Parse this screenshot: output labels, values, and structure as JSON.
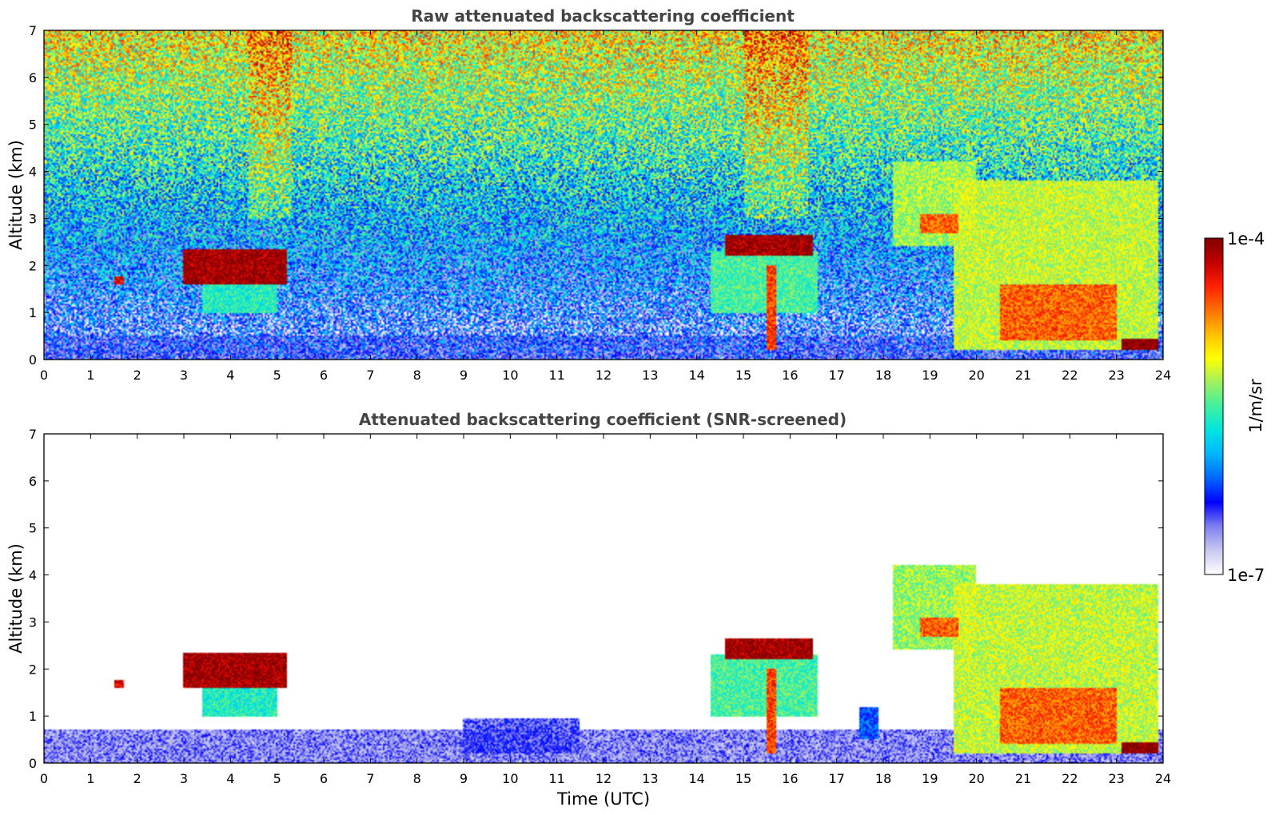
{
  "figure": {
    "colormap": [
      "#ffffff",
      "#c8c8f0",
      "#8080f0",
      "#0000ff",
      "#0066ff",
      "#00b4ff",
      "#00e6e0",
      "#40f0a0",
      "#a0f060",
      "#ffff00",
      "#ffc000",
      "#ff7000",
      "#ff2000",
      "#c00000",
      "#800000"
    ],
    "colorbar": {
      "label": "1/m/sr",
      "tick_top": "1e-4",
      "tick_bottom": "1e-7",
      "min": 1e-07,
      "max": 0.0001,
      "scale": "log"
    }
  },
  "chart_data": [
    {
      "type": "heatmap",
      "title": "Raw attenuated backscattering coefficient",
      "xlabel": "",
      "ylabel": "Altitude (km)",
      "xlim": [
        0,
        24
      ],
      "ylim": [
        0,
        7
      ],
      "x_ticks": [
        "0",
        "1",
        "2",
        "3",
        "4",
        "5",
        "6",
        "7",
        "8",
        "9",
        "10",
        "11",
        "12",
        "13",
        "14",
        "15",
        "16",
        "17",
        "18",
        "19",
        "20",
        "21",
        "22",
        "23",
        "24"
      ],
      "y_ticks": [
        "0",
        "1",
        "2",
        "3",
        "4",
        "5",
        "6",
        "7"
      ],
      "noise_screened": false,
      "features": [
        {
          "t0": 0,
          "t1": 24,
          "z0": 0,
          "z1": 0.5,
          "log_beta": -6.6
        },
        {
          "t0": 3.0,
          "t1": 5.2,
          "z0": 1.6,
          "z1": 2.35,
          "log_beta": -4.1
        },
        {
          "t0": 3.4,
          "t1": 5.0,
          "z0": 1.0,
          "z1": 1.8,
          "log_beta": -5.6
        },
        {
          "t0": 1.5,
          "t1": 1.7,
          "z0": 1.6,
          "z1": 1.75,
          "log_beta": -4.3
        },
        {
          "t0": 14.6,
          "t1": 16.5,
          "z0": 2.2,
          "z1": 2.65,
          "log_beta": -4.1
        },
        {
          "t0": 14.3,
          "t1": 16.6,
          "z0": 1.0,
          "z1": 2.3,
          "log_beta": -5.5
        },
        {
          "t0": 15.5,
          "t1": 15.7,
          "z0": 0.2,
          "z1": 2.0,
          "log_beta": -4.5
        },
        {
          "t0": 18.2,
          "t1": 20.0,
          "z0": 2.4,
          "z1": 4.2,
          "log_beta": -5.3
        },
        {
          "t0": 18.8,
          "t1": 19.6,
          "z0": 2.7,
          "z1": 3.1,
          "log_beta": -4.6
        },
        {
          "t0": 19.5,
          "t1": 23.9,
          "z0": 0.2,
          "z1": 3.8,
          "log_beta": -5.2
        },
        {
          "t0": 20.5,
          "t1": 23.0,
          "z0": 0.4,
          "z1": 1.6,
          "log_beta": -4.6
        },
        {
          "t0": 23.1,
          "t1": 23.9,
          "z0": 0.2,
          "z1": 0.45,
          "log_beta": -4.0
        }
      ]
    },
    {
      "type": "heatmap",
      "title": "Attenuated backscattering coefficient (SNR-screened)",
      "xlabel": "Time (UTC)",
      "ylabel": "Altitude (km)",
      "xlim": [
        0,
        24
      ],
      "ylim": [
        0,
        7
      ],
      "x_ticks": [
        "0",
        "1",
        "2",
        "3",
        "4",
        "5",
        "6",
        "7",
        "8",
        "9",
        "10",
        "11",
        "12",
        "13",
        "14",
        "15",
        "16",
        "17",
        "18",
        "19",
        "20",
        "21",
        "22",
        "23",
        "24"
      ],
      "y_ticks": [
        "0",
        "1",
        "2",
        "3",
        "4",
        "5",
        "6",
        "7"
      ],
      "noise_screened": true,
      "features": [
        {
          "t0": 0,
          "t1": 24,
          "z0": 0,
          "z1": 0.7,
          "log_beta": -6.6
        },
        {
          "t0": 9.0,
          "t1": 11.5,
          "z0": 0.2,
          "z1": 0.95,
          "log_beta": -6.5
        },
        {
          "t0": 17.5,
          "t1": 17.9,
          "z0": 0.5,
          "z1": 1.2,
          "log_beta": -6.2
        },
        {
          "t0": 3.0,
          "t1": 5.2,
          "z0": 1.6,
          "z1": 2.35,
          "log_beta": -4.1
        },
        {
          "t0": 3.4,
          "t1": 5.0,
          "z0": 1.0,
          "z1": 1.8,
          "log_beta": -5.6
        },
        {
          "t0": 1.5,
          "t1": 1.7,
          "z0": 1.6,
          "z1": 1.75,
          "log_beta": -4.3
        },
        {
          "t0": 14.6,
          "t1": 16.5,
          "z0": 2.2,
          "z1": 2.65,
          "log_beta": -4.1
        },
        {
          "t0": 14.3,
          "t1": 16.6,
          "z0": 1.0,
          "z1": 2.3,
          "log_beta": -5.5
        },
        {
          "t0": 15.5,
          "t1": 15.7,
          "z0": 0.2,
          "z1": 2.0,
          "log_beta": -4.5
        },
        {
          "t0": 18.2,
          "t1": 20.0,
          "z0": 2.4,
          "z1": 4.2,
          "log_beta": -5.3
        },
        {
          "t0": 18.8,
          "t1": 19.6,
          "z0": 2.7,
          "z1": 3.1,
          "log_beta": -4.6
        },
        {
          "t0": 19.5,
          "t1": 23.9,
          "z0": 0.2,
          "z1": 3.8,
          "log_beta": -5.2
        },
        {
          "t0": 20.5,
          "t1": 23.0,
          "z0": 0.4,
          "z1": 1.6,
          "log_beta": -4.6
        },
        {
          "t0": 23.1,
          "t1": 23.9,
          "z0": 0.2,
          "z1": 0.45,
          "log_beta": -4.0
        }
      ]
    }
  ]
}
